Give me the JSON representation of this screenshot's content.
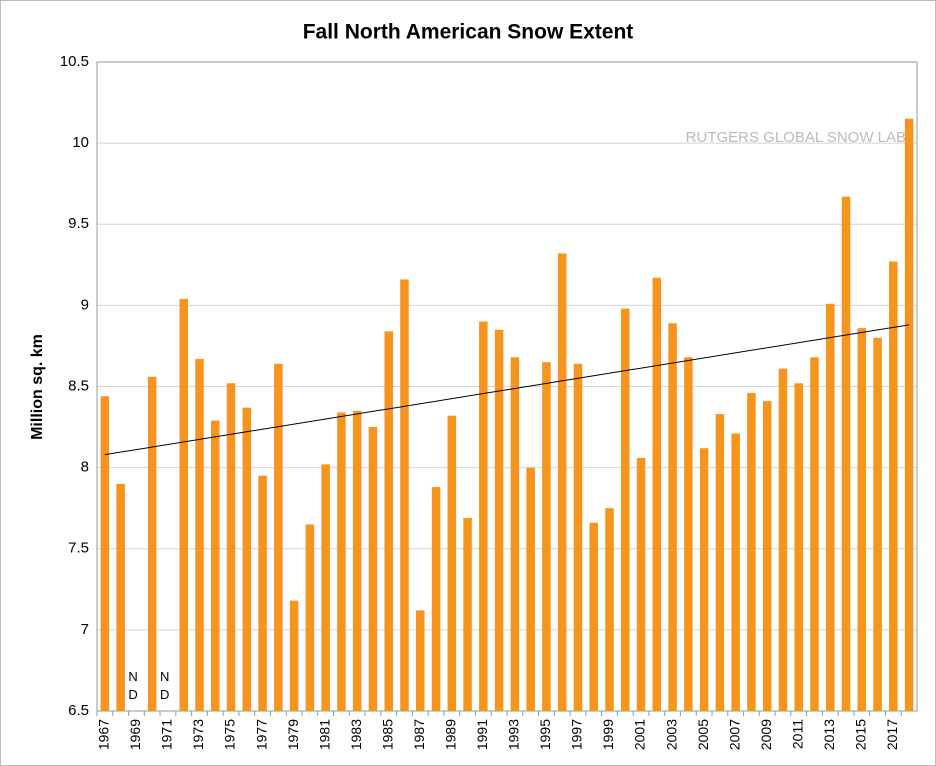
{
  "chart_data": {
    "type": "bar",
    "title": "Fall North American Snow Extent",
    "y_label": "Million sq. km",
    "watermark": "RUTGERS GLOBAL SNOW LAB",
    "nd_labels": [
      "N D",
      "N D"
    ],
    "categories": [
      "1967",
      null,
      "1969",
      null,
      "1971",
      null,
      "1973",
      null,
      "1975",
      null,
      "1977",
      null,
      "1979",
      null,
      "1981",
      null,
      "1983",
      null,
      "1985",
      null,
      "1987",
      null,
      "1989",
      null,
      "1991",
      null,
      "1993",
      null,
      "1995",
      null,
      "1997",
      null,
      "1999",
      null,
      "2001",
      null,
      "2003",
      null,
      "2005",
      null,
      "2007",
      null,
      "2009",
      null,
      "2011",
      null,
      "2013",
      null,
      "2015",
      null,
      "2017",
      null
    ],
    "values": [
      8.44,
      7.9,
      null,
      8.56,
      null,
      9.04,
      8.67,
      8.29,
      8.52,
      8.37,
      7.95,
      8.64,
      7.18,
      7.65,
      8.02,
      8.34,
      8.35,
      8.25,
      8.84,
      9.16,
      7.12,
      7.88,
      8.32,
      7.69,
      8.9,
      8.85,
      8.68,
      8.0,
      8.65,
      9.32,
      8.64,
      7.66,
      7.75,
      8.98,
      8.06,
      9.17,
      8.89,
      8.68,
      8.12,
      8.33,
      8.21,
      8.46,
      8.41,
      8.61,
      8.52,
      8.68,
      9.01,
      9.67,
      8.86,
      8.8,
      9.27,
      10.15
    ],
    "trendline": {
      "start": 8.08,
      "end": 8.88
    },
    "color": "#f7941d",
    "ylim": [
      6.5,
      10.5
    ],
    "yticks": [
      6.5,
      7,
      7.5,
      8,
      8.5,
      9,
      9.5,
      10,
      10.5
    ],
    "grid": true
  }
}
